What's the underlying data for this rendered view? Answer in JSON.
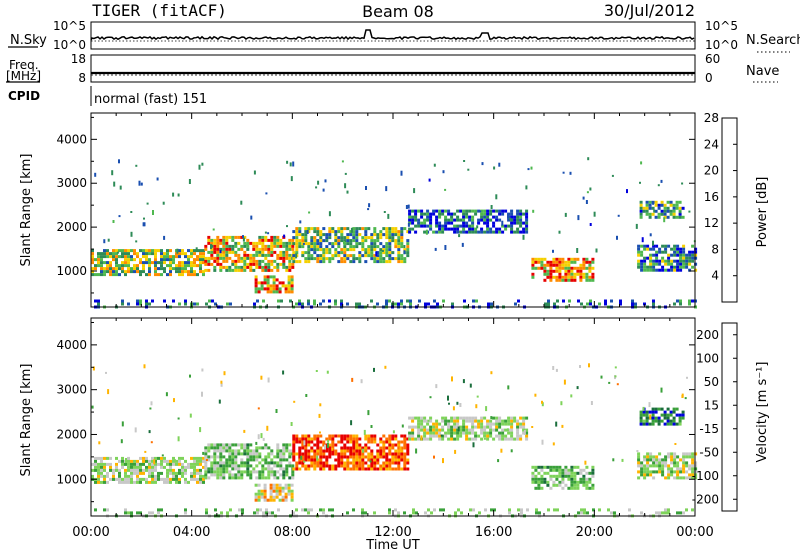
{
  "header": {
    "radar": "TIGER (fitACF)",
    "beam": "Beam 08",
    "date": "30/Jul/2012"
  },
  "strips": {
    "nsky_label": "N.Sky",
    "nsky_ticks": [
      "10^5",
      "10^0"
    ],
    "nsearch_label": "N.Search",
    "nsearch_ticks": [
      "10^5",
      "10^0"
    ],
    "freq_label_1": "Freq.",
    "freq_label_2": "[MHz]",
    "freq_ticks": [
      "18",
      "8"
    ],
    "nave_label": "Nave",
    "nave_ticks": [
      "60",
      "0"
    ],
    "cpid_label": "CPID",
    "cpid_value": "normal (fast) 151"
  },
  "chart_data": [
    {
      "type": "heatmap",
      "title": "",
      "xlabel": "",
      "ylabel": "Slant Range [km]",
      "x_ticks": [
        "00:00",
        "04:00",
        "08:00",
        "12:00",
        "16:00",
        "20:00",
        "00:00"
      ],
      "xlim_hours": [
        0,
        24
      ],
      "y_ticks": [
        1000,
        2000,
        3000,
        4000
      ],
      "ylim": [
        180,
        4600
      ],
      "colorbar": {
        "label": "Power [dB]",
        "ticks": [
          "4",
          "8",
          "12",
          "16",
          "20",
          "24",
          "28"
        ],
        "range": [
          0,
          30
        ],
        "colors": [
          "#0000dd",
          "#1a4fb0",
          "#2e8b57",
          "#4fb84f",
          "#f5d000",
          "#ff8c00",
          "#e80000"
        ]
      },
      "echo_regions": [
        {
          "t0": 0.0,
          "t1": 4.5,
          "r0": 900,
          "r1": 1500,
          "level": 16
        },
        {
          "t0": 4.5,
          "t1": 8.0,
          "r0": 1000,
          "r1": 1800,
          "level": 20
        },
        {
          "t0": 6.5,
          "t1": 8.0,
          "r0": 500,
          "r1": 900,
          "level": 22
        },
        {
          "t0": 8.0,
          "t1": 12.6,
          "r0": 1200,
          "r1": 2000,
          "level": 14
        },
        {
          "t0": 12.6,
          "t1": 17.3,
          "r0": 1900,
          "r1": 2400,
          "level": 6
        },
        {
          "t0": 17.5,
          "t1": 20.0,
          "r0": 800,
          "r1": 1300,
          "level": 22
        },
        {
          "t0": 21.7,
          "t1": 24.0,
          "r0": 1000,
          "r1": 1600,
          "level": 10
        },
        {
          "t0": 21.8,
          "t1": 23.5,
          "r0": 2200,
          "r1": 2600,
          "level": 12
        },
        {
          "t0": 0.0,
          "t1": 24.0,
          "r0": 190,
          "r1": 350,
          "level": 8
        }
      ]
    },
    {
      "type": "heatmap",
      "title": "",
      "xlabel": "Time UT",
      "ylabel": "Slant Range [km]",
      "x_ticks": [
        "00:00",
        "04:00",
        "08:00",
        "12:00",
        "16:00",
        "20:00",
        "00:00"
      ],
      "xlim_hours": [
        0,
        24
      ],
      "y_ticks": [
        1000,
        2000,
        3000,
        4000
      ],
      "ylim": [
        180,
        4600
      ],
      "colorbar": {
        "label": "Velocity [m s⁻¹]",
        "ticks": [
          "200",
          "100",
          "50",
          "15",
          "-15",
          "-50",
          "-100",
          "-200"
        ],
        "range": [
          -250,
          250
        ],
        "colors": [
          "#0000dd",
          "#1a6e3c",
          "#3aa03a",
          "#7ed35a",
          "#c8c8c8",
          "#ffb400",
          "#ff7000",
          "#e80000"
        ]
      },
      "echo_regions": [
        {
          "t0": 0.0,
          "t1": 4.5,
          "r0": 900,
          "r1": 1500,
          "level": 0
        },
        {
          "t0": 4.5,
          "t1": 8.0,
          "r0": 1000,
          "r1": 1800,
          "level": -40
        },
        {
          "t0": 6.5,
          "t1": 8.0,
          "r0": 500,
          "r1": 900,
          "level": 60
        },
        {
          "t0": 8.0,
          "t1": 12.6,
          "r0": 1200,
          "r1": 2000,
          "level": 180
        },
        {
          "t0": 12.6,
          "t1": 17.3,
          "r0": 1900,
          "r1": 2400,
          "level": 0
        },
        {
          "t0": 17.5,
          "t1": 20.0,
          "r0": 800,
          "r1": 1300,
          "level": -60
        },
        {
          "t0": 21.7,
          "t1": 24.0,
          "r0": 1000,
          "r1": 1600,
          "level": 0
        },
        {
          "t0": 21.8,
          "t1": 23.5,
          "r0": 2200,
          "r1": 2600,
          "level": -150
        },
        {
          "t0": 0.0,
          "t1": 24.0,
          "r0": 190,
          "r1": 350,
          "level": -30
        }
      ]
    }
  ]
}
